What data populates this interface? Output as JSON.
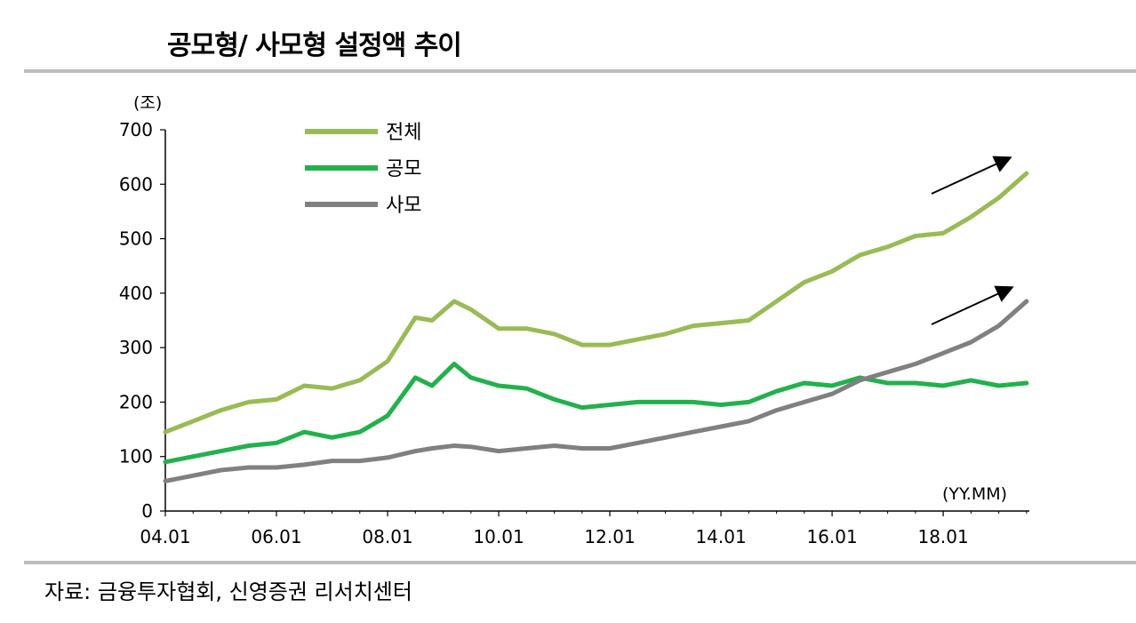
{
  "title": "공모형/ 사모형 설정액 추이",
  "source": "자료: 금융투자협회, 신영증권 리서치센터",
  "chart_data": {
    "type": "line",
    "unit_label": "(조)",
    "x_unit_label": "(YY.MM)",
    "ylim": [
      0,
      700
    ],
    "y_ticks": [
      "0",
      "100",
      "200",
      "300",
      "400",
      "500",
      "600",
      "700"
    ],
    "x_tick_labels": [
      "04.01",
      "06.01",
      "08.01",
      "10.01",
      "12.01",
      "14.01",
      "16.01",
      "18.01"
    ],
    "x_tick_years": [
      2004,
      2006,
      2008,
      2010,
      2012,
      2014,
      2016,
      2018
    ],
    "x": [
      2004.0,
      2004.5,
      2005.0,
      2005.5,
      2006.0,
      2006.5,
      2007.0,
      2007.5,
      2008.0,
      2008.5,
      2008.8,
      2009.2,
      2009.5,
      2010.0,
      2010.5,
      2011.0,
      2011.5,
      2012.0,
      2012.5,
      2013.0,
      2013.5,
      2014.0,
      2014.5,
      2015.0,
      2015.5,
      2016.0,
      2016.5,
      2017.0,
      2017.5,
      2018.0,
      2018.5,
      2019.0,
      2019.5
    ],
    "series": [
      {
        "name": "전체",
        "color": "#99bb55",
        "values": [
          145,
          165,
          185,
          200,
          205,
          230,
          225,
          240,
          275,
          355,
          350,
          385,
          370,
          335,
          335,
          325,
          305,
          305,
          315,
          325,
          340,
          345,
          350,
          385,
          420,
          440,
          470,
          485,
          505,
          510,
          540,
          575,
          620
        ]
      },
      {
        "name": "공모",
        "color": "#22b14c",
        "values": [
          90,
          100,
          110,
          120,
          125,
          145,
          135,
          145,
          175,
          245,
          230,
          270,
          245,
          230,
          225,
          205,
          190,
          195,
          200,
          200,
          200,
          195,
          200,
          220,
          235,
          230,
          245,
          235,
          235,
          230,
          240,
          230,
          235
        ]
      },
      {
        "name": "사모",
        "color": "#808080",
        "values": [
          55,
          65,
          75,
          80,
          80,
          85,
          92,
          92,
          98,
          110,
          115,
          120,
          118,
          110,
          115,
          120,
          115,
          115,
          125,
          135,
          145,
          155,
          165,
          185,
          200,
          215,
          240,
          255,
          270,
          290,
          310,
          340,
          385
        ]
      }
    ],
    "annotations": [
      "arrow-up-right",
      "arrow-up-right"
    ],
    "grid": false,
    "legend_position": "top-left"
  }
}
